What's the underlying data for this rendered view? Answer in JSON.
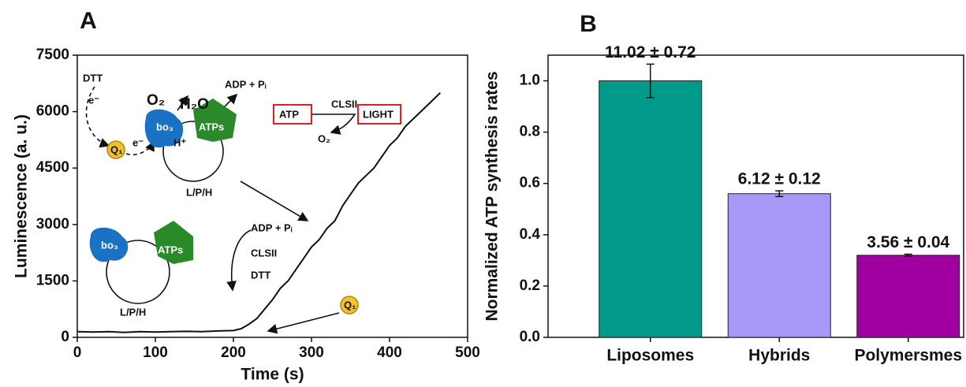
{
  "chart_data": [
    {
      "type": "line",
      "panel": "A",
      "xlabel": "Time (s)",
      "ylabel": "Luminescence (a. u.)",
      "color": "#111111",
      "x": [
        0,
        20,
        40,
        60,
        80,
        100,
        120,
        140,
        160,
        180,
        200,
        210,
        220,
        230,
        240,
        250,
        260,
        270,
        280,
        290,
        300,
        310,
        320,
        330,
        340,
        350,
        360,
        370,
        380,
        390,
        400,
        410,
        420,
        430,
        440,
        450,
        460,
        465
      ],
      "values": [
        150,
        140,
        150,
        130,
        150,
        140,
        150,
        160,
        150,
        170,
        180,
        230,
        350,
        500,
        750,
        1000,
        1300,
        1500,
        1800,
        2100,
        2400,
        2600,
        2900,
        3100,
        3500,
        3800,
        4100,
        4300,
        4500,
        4800,
        5100,
        5300,
        5600,
        5800,
        6000,
        6200,
        6400,
        6500
      ],
      "xlim": [
        0,
        500
      ],
      "xticks": [
        0,
        100,
        200,
        300,
        400,
        500
      ],
      "ylim": [
        0,
        7500
      ],
      "yticks": [
        0,
        1500,
        3000,
        4500,
        6000,
        7500
      ],
      "annotations": [
        "DTT",
        "e⁻",
        "O₂",
        "H₂O",
        "ADP + Pᵢ",
        "ATP",
        "CLSII",
        "LIGHT",
        "O₂",
        "Q₁",
        "e⁻",
        "bo₃",
        "ATPs",
        "H⁺",
        "L/P/H",
        "bo₃",
        "ATPs",
        "ADP + Pᵢ",
        "CLSII",
        "DTT",
        "L/P/H",
        "Q₁"
      ]
    },
    {
      "type": "bar",
      "panel": "B",
      "ylabel": "Normalized ATP synthesis rates",
      "categories": [
        "Liposomes",
        "Hybrids",
        "Polymersmes"
      ],
      "values": [
        1.0,
        0.56,
        0.32
      ],
      "errors": [
        0.065,
        0.011,
        0.004
      ],
      "colors": [
        "#00998a",
        "#a898f8",
        "#a0009f"
      ],
      "annotations": [
        "11.02 ± 0.72",
        "6.12 ± 0.12",
        "3.56 ± 0.04"
      ],
      "ylim": [
        0,
        1.1
      ],
      "yticks": [
        {
          "value": 0,
          "label": "0.0"
        },
        0.2,
        0.4,
        0.6,
        0.8,
        {
          "value": 1,
          "label": "1.0"
        }
      ]
    }
  ]
}
